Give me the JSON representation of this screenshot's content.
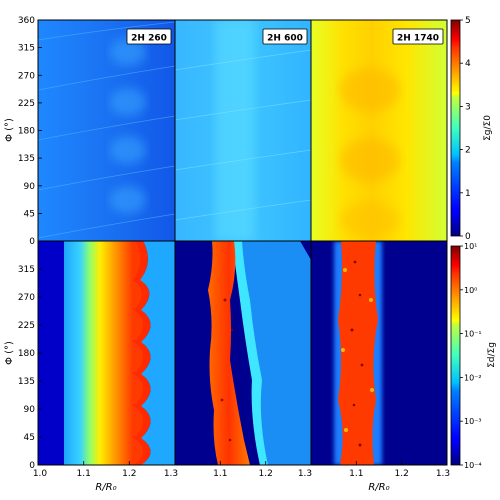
{
  "chart_data": {
    "type": "heatmap",
    "x_ticks": [
      "1.0",
      "1.1",
      "1.2",
      "1.3",
      "1.0",
      "1.1",
      "1.2",
      "1.3",
      "1.0",
      "1.1",
      "1.2",
      "1.3"
    ],
    "xlim": [
      1.0,
      1.3
    ],
    "ylim": [
      0,
      360
    ],
    "y_ticks_top": [
      "0",
      "45",
      "90",
      "135",
      "180",
      "225",
      "270",
      "315",
      "360"
    ],
    "y_ticks_bottom": [
      "0",
      "45",
      "90",
      "135",
      "180",
      "225",
      "270",
      "315"
    ],
    "ylabel_top": "Φ (°)",
    "ylabel_bottom": "Φ (°)",
    "xlabel_left": "R/R₀",
    "xlabel_right": "R/R₀",
    "panels_top": [
      {
        "label": "2H 260",
        "mean_level": 1.4
      },
      {
        "label": "2H 600",
        "mean_level": 1.9
      },
      {
        "label": "2H 1740",
        "mean_level": 3.2
      }
    ],
    "panels_bottom": [
      {
        "ring_r": 1.25,
        "peak_log_ratio": 0.5
      },
      {
        "ring_r": 1.18,
        "peak_log_ratio": 1.0
      },
      {
        "ring_r": 1.1,
        "peak_log_ratio": 1.0
      }
    ],
    "colorbar_top": {
      "label": "Σg/Σ0",
      "scale": "linear",
      "range": [
        0,
        5
      ],
      "ticks": [
        "0",
        "1",
        "2",
        "3",
        "4",
        "5"
      ]
    },
    "colorbar_bottom": {
      "label": "Σd/Σg",
      "scale": "log",
      "range": [
        0.0001,
        10
      ],
      "ticks": [
        "10⁻⁴",
        "10⁻³",
        "10⁻²",
        "10⁻¹",
        "10⁰",
        "10¹"
      ]
    },
    "colormap": "jet"
  }
}
